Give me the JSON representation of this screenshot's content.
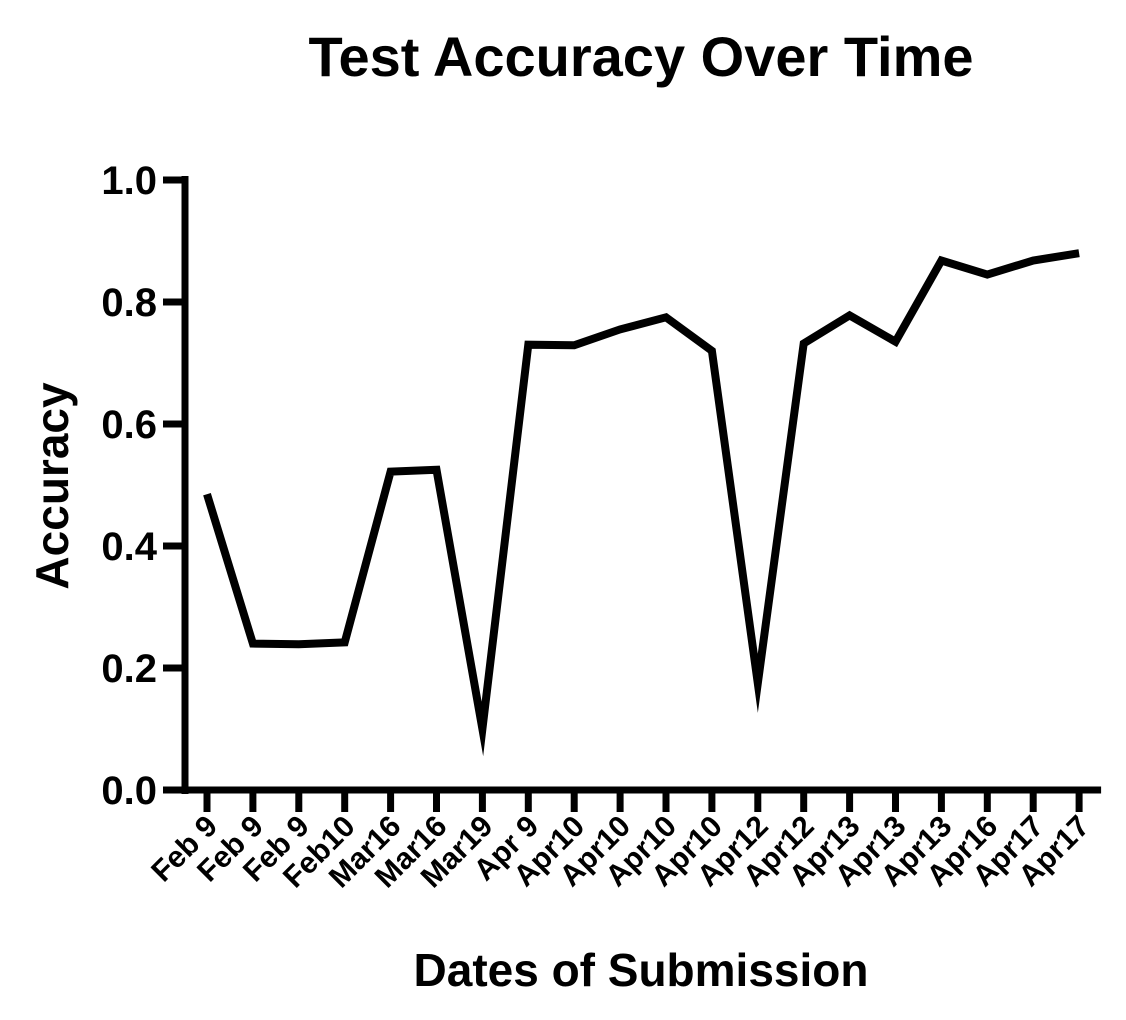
{
  "chart_data": {
    "type": "line",
    "title": "Test Accuracy Over Time",
    "xlabel": "Dates of Submission",
    "ylabel": "Accuracy",
    "ylim": [
      0,
      1.0
    ],
    "yticks": [
      "0.0",
      "0.2",
      "0.4",
      "0.6",
      "0.8",
      "1.0"
    ],
    "grid": false,
    "categories": [
      "Feb 9",
      "Feb 9",
      "Feb 9",
      "Feb10",
      "Mar16",
      "Mar16",
      "Mar19",
      "Apr 9",
      "Apr10",
      "Apr10",
      "Apr10",
      "Apr10",
      "Apr12",
      "Apr12",
      "Apr13",
      "Apr13",
      "Apr13",
      "Apr16",
      "Apr17",
      "Apr17"
    ],
    "series": [
      {
        "values": [
          0.485,
          0.24,
          0.239,
          0.242,
          0.522,
          0.525,
          0.1,
          0.73,
          0.729,
          0.755,
          0.775,
          0.72,
          0.175,
          0.732,
          0.778,
          0.735,
          0.868,
          0.845,
          0.868,
          0.88
        ],
        "color": "#000000"
      }
    ]
  }
}
